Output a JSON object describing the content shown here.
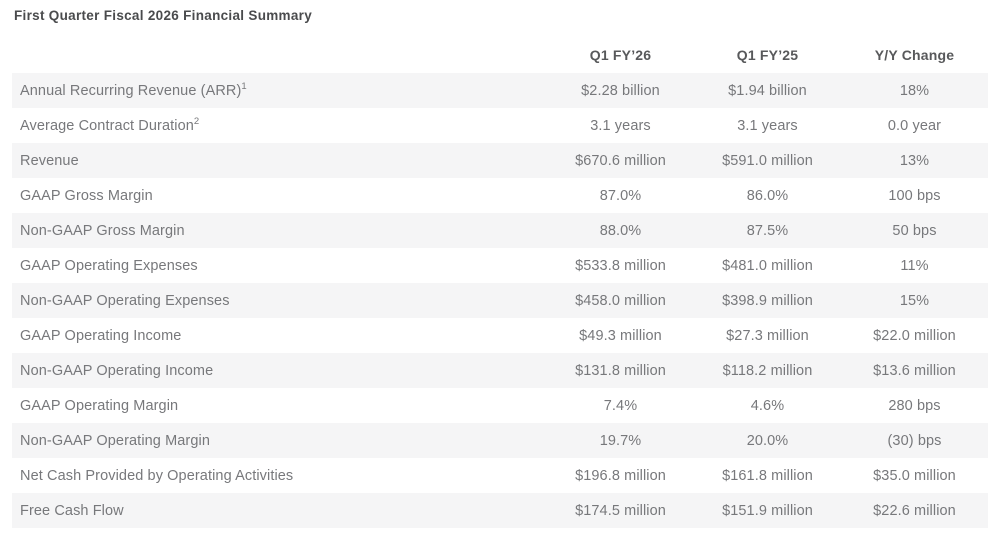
{
  "title": "First Quarter Fiscal 2026 Financial Summary",
  "colors": {
    "background": "#ffffff",
    "row_stripe": "#f5f5f6",
    "body_text": "#77787b",
    "heading_text": "#4a4b4d"
  },
  "table": {
    "columns": [
      "Q1 FY’26",
      "Q1 FY’25",
      "Y/Y Change"
    ],
    "rows": [
      {
        "label": "Annual Recurring Revenue (ARR)",
        "sup": "1",
        "q1fy26": "$2.28 billion",
        "q1fy25": "$1.94 billion",
        "yoy": "18%"
      },
      {
        "label": "Average Contract Duration",
        "sup": "2",
        "q1fy26": "3.1 years",
        "q1fy25": "3.1 years",
        "yoy": "0.0 year"
      },
      {
        "label": "Revenue",
        "q1fy26": "$670.6 million",
        "q1fy25": "$591.0 million",
        "yoy": "13%"
      },
      {
        "label": "GAAP Gross Margin",
        "q1fy26": "87.0%",
        "q1fy25": "86.0%",
        "yoy": "100 bps"
      },
      {
        "label": "Non-GAAP Gross Margin",
        "q1fy26": "88.0%",
        "q1fy25": "87.5%",
        "yoy": "50 bps"
      },
      {
        "label": "GAAP Operating Expenses",
        "q1fy26": "$533.8 million",
        "q1fy25": "$481.0 million",
        "yoy": "11%"
      },
      {
        "label": "Non-GAAP Operating Expenses",
        "q1fy26": "$458.0 million",
        "q1fy25": "$398.9 million",
        "yoy": "15%"
      },
      {
        "label": "GAAP Operating Income",
        "q1fy26": "$49.3 million",
        "q1fy25": "$27.3 million",
        "yoy": "$22.0 million"
      },
      {
        "label": "Non-GAAP Operating Income",
        "q1fy26": "$131.8 million",
        "q1fy25": "$118.2 million",
        "yoy": "$13.6 million"
      },
      {
        "label": "GAAP Operating Margin",
        "q1fy26": "7.4%",
        "q1fy25": "4.6%",
        "yoy": "280 bps"
      },
      {
        "label": "Non-GAAP Operating Margin",
        "q1fy26": "19.7%",
        "q1fy25": "20.0%",
        "yoy": "(30) bps"
      },
      {
        "label": "Net Cash Provided by Operating Activities",
        "q1fy26": "$196.8 million",
        "q1fy25": "$161.8 million",
        "yoy": "$35.0 million"
      },
      {
        "label": "Free Cash Flow",
        "q1fy26": "$174.5 million",
        "q1fy25": "$151.9 million",
        "yoy": "$22.6 million"
      }
    ]
  }
}
